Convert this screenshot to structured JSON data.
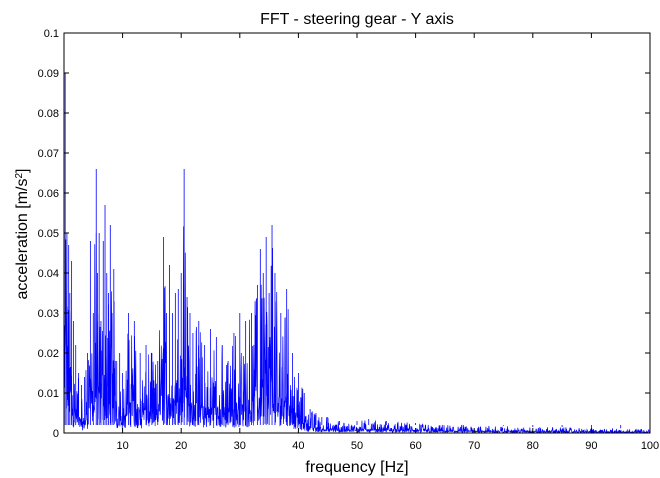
{
  "chart_data": {
    "type": "line",
    "title": "FFT - steering gear - Y axis",
    "xlabel": "frequency [Hz]",
    "ylabel": {
      "main": "acceleration [m/s",
      "superscript": "2",
      "end": "]"
    },
    "xlim": [
      0,
      100
    ],
    "ylim": [
      0,
      0.1
    ],
    "xticks": [
      10,
      20,
      30,
      40,
      50,
      60,
      70,
      80,
      90,
      100
    ],
    "xtick_labels": [
      "10",
      "20",
      "30",
      "40",
      "50",
      "60",
      "70",
      "80",
      "90",
      "100"
    ],
    "yticks": [
      0,
      0.01,
      0.02,
      0.03,
      0.04,
      0.05,
      0.06,
      0.07,
      0.08,
      0.09,
      0.1
    ],
    "ytick_labels": [
      "0",
      "0.01",
      "0.02",
      "0.03",
      "0.04",
      "0.05",
      "0.06",
      "0.07",
      "0.08",
      "0.09",
      "0.1"
    ],
    "grid": false,
    "legend": "none",
    "series_color": "#0000ff",
    "series": [
      {
        "x": [
          0.2,
          0.5,
          0.8,
          1.0,
          1.3,
          1.6,
          2.0,
          2.5,
          3.0,
          3.5,
          4.0,
          4.5,
          5.0,
          5.5,
          5.7,
          6.0,
          6.3,
          6.7,
          7.0,
          7.3,
          7.6,
          7.9,
          8.2,
          8.5,
          9.0,
          9.5,
          10.0,
          11.0,
          12.0,
          13.0,
          14.0,
          15.0,
          16.0,
          17.0,
          17.5,
          18.0,
          18.5,
          19.0,
          19.5,
          20.0,
          20.5,
          21.0,
          21.5,
          22.0,
          23.0,
          24.0,
          25.0,
          26.0,
          27.0,
          28.0,
          29.0,
          30.0,
          31.0,
          32.0,
          33.0,
          33.5,
          34.0,
          34.5,
          35.0,
          35.5,
          36.0,
          37.0,
          38.0,
          39.0,
          40.0,
          41.0,
          42.0,
          43.0,
          44.0,
          45.0,
          47.0,
          50.0,
          52.0,
          55.0,
          60.0,
          65.0,
          70.0,
          75.0,
          80.0,
          85.0,
          90.0,
          95.0,
          100.0
        ],
        "y": [
          0.09,
          0.05,
          0.047,
          0.035,
          0.043,
          0.028,
          0.022,
          0.015,
          0.012,
          0.014,
          0.02,
          0.048,
          0.03,
          0.066,
          0.04,
          0.05,
          0.028,
          0.048,
          0.057,
          0.04,
          0.035,
          0.052,
          0.03,
          0.041,
          0.018,
          0.02,
          0.015,
          0.03,
          0.028,
          0.02,
          0.022,
          0.02,
          0.018,
          0.049,
          0.03,
          0.042,
          0.03,
          0.035,
          0.036,
          0.04,
          0.066,
          0.034,
          0.03,
          0.025,
          0.028,
          0.022,
          0.026,
          0.024,
          0.022,
          0.018,
          0.025,
          0.03,
          0.028,
          0.03,
          0.037,
          0.046,
          0.04,
          0.049,
          0.035,
          0.052,
          0.04,
          0.03,
          0.036,
          0.02,
          0.015,
          0.01,
          0.006,
          0.005,
          0.004,
          0.004,
          0.003,
          0.003,
          0.0035,
          0.003,
          0.0025,
          0.002,
          0.002,
          0.0018,
          0.0015,
          0.0015,
          0.0012,
          0.0012,
          0.001
        ]
      }
    ]
  }
}
